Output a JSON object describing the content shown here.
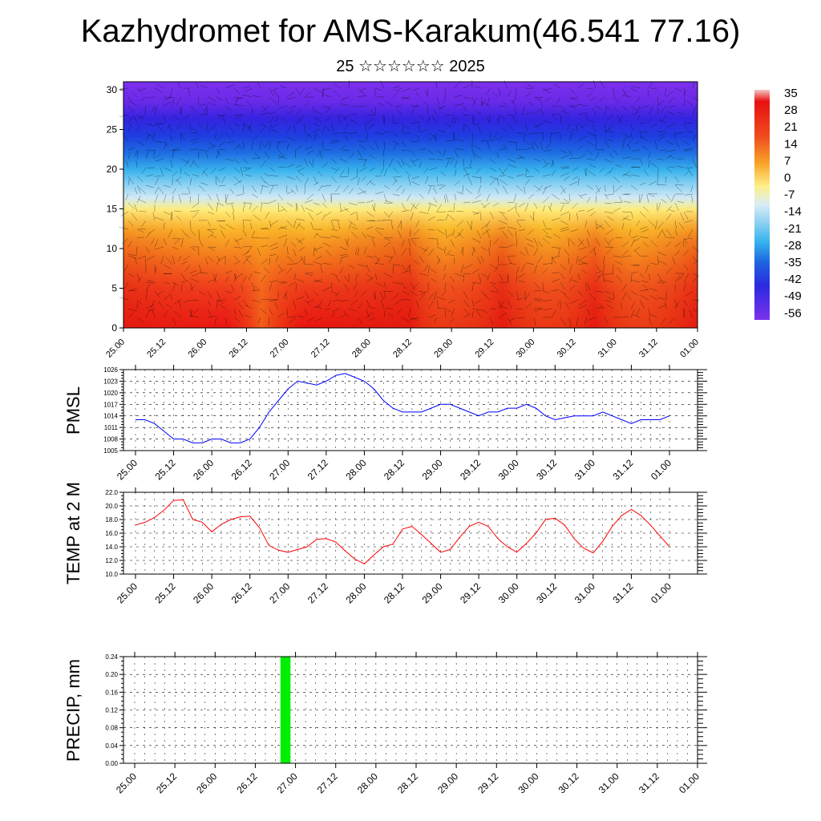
{
  "title": "Kazhydromet for AMS-Karakum(46.541 77.16)",
  "subtitle": "25 ☆☆☆☆☆☆ 2025",
  "time_labels": [
    "25.00",
    "25.12",
    "26.00",
    "26.12",
    "27.00",
    "27.12",
    "28.00",
    "28.12",
    "29.00",
    "29.12",
    "30.00",
    "30.12",
    "31.00",
    "31.12",
    "01.00"
  ],
  "chart_data": [
    {
      "type": "heatmap",
      "title": "",
      "ylabel": "",
      "ylim": [
        0,
        30
      ],
      "y_ticks": [
        "0",
        "5",
        "10",
        "15",
        "20",
        "25",
        "30"
      ],
      "x_ticks": [
        "25.00",
        "25.12",
        "26.00",
        "26.12",
        "27.00",
        "27.12",
        "28.00",
        "28.12",
        "29.00",
        "29.12",
        "30.00",
        "30.12",
        "31.00",
        "31.12",
        "01.00"
      ],
      "colorbar": {
        "labels": [
          "35",
          "28",
          "21",
          "14",
          "7",
          "0",
          "-7",
          "-14",
          "-21",
          "-28",
          "-35",
          "-42",
          "-49",
          "-56"
        ],
        "colors": [
          "#f2b4b4",
          "#e80c0c",
          "#f03c1c",
          "#f46a1e",
          "#f89a28",
          "#fccc3c",
          "#fff08c",
          "#cfe6f6",
          "#8dd1f2",
          "#38b6ee",
          "#1e88e6",
          "#1e50e0",
          "#3028e4",
          "#7428e8"
        ]
      },
      "grid": false,
      "overlay": "wind barbs"
    },
    {
      "type": "line",
      "ylabel": "PMSL",
      "ylim": [
        1005,
        1026
      ],
      "y_ticks": [
        1005,
        1008,
        1011,
        1014,
        1017,
        1020,
        1023,
        1026
      ],
      "x_ticks": [
        "25.00",
        "25.12",
        "26.00",
        "26.12",
        "27.00",
        "27.12",
        "28.00",
        "28.12",
        "29.00",
        "29.12",
        "30.00",
        "30.12",
        "31.00",
        "31.12",
        "01.00"
      ],
      "color": "#0000ff",
      "grid": true,
      "series": [
        {
          "values": [
            1013,
            1013,
            1012,
            1010,
            1008,
            1008,
            1007,
            1007,
            1008,
            1008,
            1007,
            1007,
            1008,
            1011,
            1015,
            1018,
            1021,
            1023,
            1022.5,
            1022,
            1023,
            1024.5,
            1025,
            1024,
            1023,
            1021,
            1018,
            1016,
            1015,
            1015,
            1015,
            1016,
            1017,
            1017,
            1016,
            1015,
            1014,
            1015,
            1015,
            1016,
            1016,
            1017,
            1016,
            1014,
            1013,
            1013.5,
            1014,
            1014,
            1014,
            1015,
            1014,
            1013,
            1012,
            1013,
            1013,
            1013,
            1014
          ]
        }
      ]
    },
    {
      "type": "line",
      "ylabel": "TEMP at 2 M",
      "ylim": [
        10,
        22
      ],
      "y_ticks": [
        "10.0",
        "12.0",
        "14.0",
        "16.0",
        "18.0",
        "20.0",
        "22.0"
      ],
      "x_ticks": [
        "25.00",
        "25.12",
        "26.00",
        "26.12",
        "27.00",
        "27.12",
        "28.00",
        "28.12",
        "29.00",
        "29.12",
        "30.00",
        "30.12",
        "31.00",
        "31.12",
        "01.00"
      ],
      "color": "#ff0000",
      "grid": true,
      "series": [
        {
          "values": [
            17.2,
            17.6,
            18.3,
            19.4,
            20.8,
            20.9,
            18.0,
            17.6,
            16.2,
            17.3,
            18.0,
            18.4,
            18.5,
            16.8,
            14.2,
            13.5,
            13.2,
            13.6,
            14.0,
            15.1,
            15.2,
            14.7,
            13.4,
            12.2,
            11.5,
            12.8,
            14.0,
            14.4,
            16.6,
            17.0,
            15.8,
            14.5,
            13.2,
            13.6,
            15.4,
            17.0,
            17.6,
            17.0,
            15.2,
            14.0,
            13.2,
            14.5,
            16.0,
            18.0,
            18.2,
            17.2,
            15.2,
            13.8,
            13.1,
            14.8,
            17.0,
            18.6,
            19.5,
            18.6,
            17.2,
            15.6,
            14.0
          ]
        }
      ]
    },
    {
      "type": "bar",
      "ylabel": "PRECIP, mm",
      "ylim": [
        0,
        0.24
      ],
      "y_ticks": [
        "0.00",
        "0.04",
        "0.08",
        "0.12",
        "0.16",
        "0.20",
        "0.24"
      ],
      "x_ticks": [
        "25.00",
        "25.12",
        "26.00",
        "26.12",
        "27.00",
        "27.12",
        "28.00",
        "28.12",
        "29.00",
        "29.12",
        "30.00",
        "30.12",
        "31.00",
        "31.12",
        "01.00"
      ],
      "color": "#00ee00",
      "grid": true,
      "series": [
        {
          "values": [
            0,
            0,
            0,
            0,
            0,
            0,
            0,
            0,
            0,
            0,
            0,
            0,
            0,
            0,
            0,
            0.24,
            0,
            0,
            0,
            0,
            0,
            0,
            0,
            0,
            0,
            0,
            0,
            0,
            0,
            0,
            0,
            0,
            0,
            0,
            0,
            0,
            0,
            0,
            0,
            0,
            0,
            0,
            0,
            0,
            0,
            0,
            0,
            0,
            0,
            0,
            0,
            0,
            0,
            0,
            0,
            0,
            0
          ]
        }
      ]
    }
  ]
}
